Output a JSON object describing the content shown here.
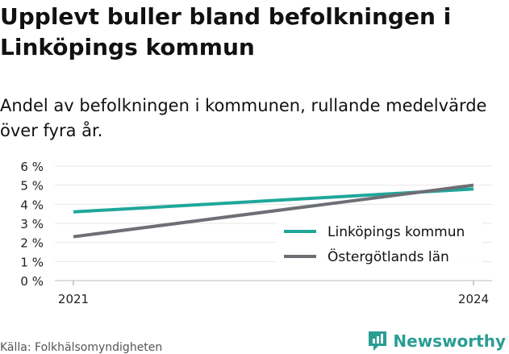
{
  "header": {
    "title": "Upplevt buller bland befolkningen i Linköpings kommun",
    "subtitle": "Andel av befolkningen i kommunen, rullande medelvärde över fyra år."
  },
  "footer": {
    "source": "Källa: Folkhälsomyndigheten",
    "brand": "Newsworthy"
  },
  "colors": {
    "linkoping": "#1fa79a",
    "ostergotland": "#6e6e75",
    "brand": "#2a9d93"
  },
  "chart_data": {
    "type": "line",
    "x": [
      2021,
      2024
    ],
    "x_tick_labels": [
      "2021",
      "2024"
    ],
    "ylim": [
      0,
      6
    ],
    "y_ticks": [
      0,
      1,
      2,
      3,
      4,
      5,
      6
    ],
    "y_tick_labels": [
      "0 %",
      "1 %",
      "2 %",
      "3 %",
      "4 %",
      "5 %",
      "6 %"
    ],
    "grid": true,
    "legend_position": "bottom-right",
    "series": [
      {
        "name": "Linköpings kommun",
        "values": [
          3.6,
          4.8
        ],
        "color": "#1fa79a"
      },
      {
        "name": "Östergötlands län",
        "values": [
          2.3,
          5.0
        ],
        "color": "#6e6e75"
      }
    ]
  }
}
